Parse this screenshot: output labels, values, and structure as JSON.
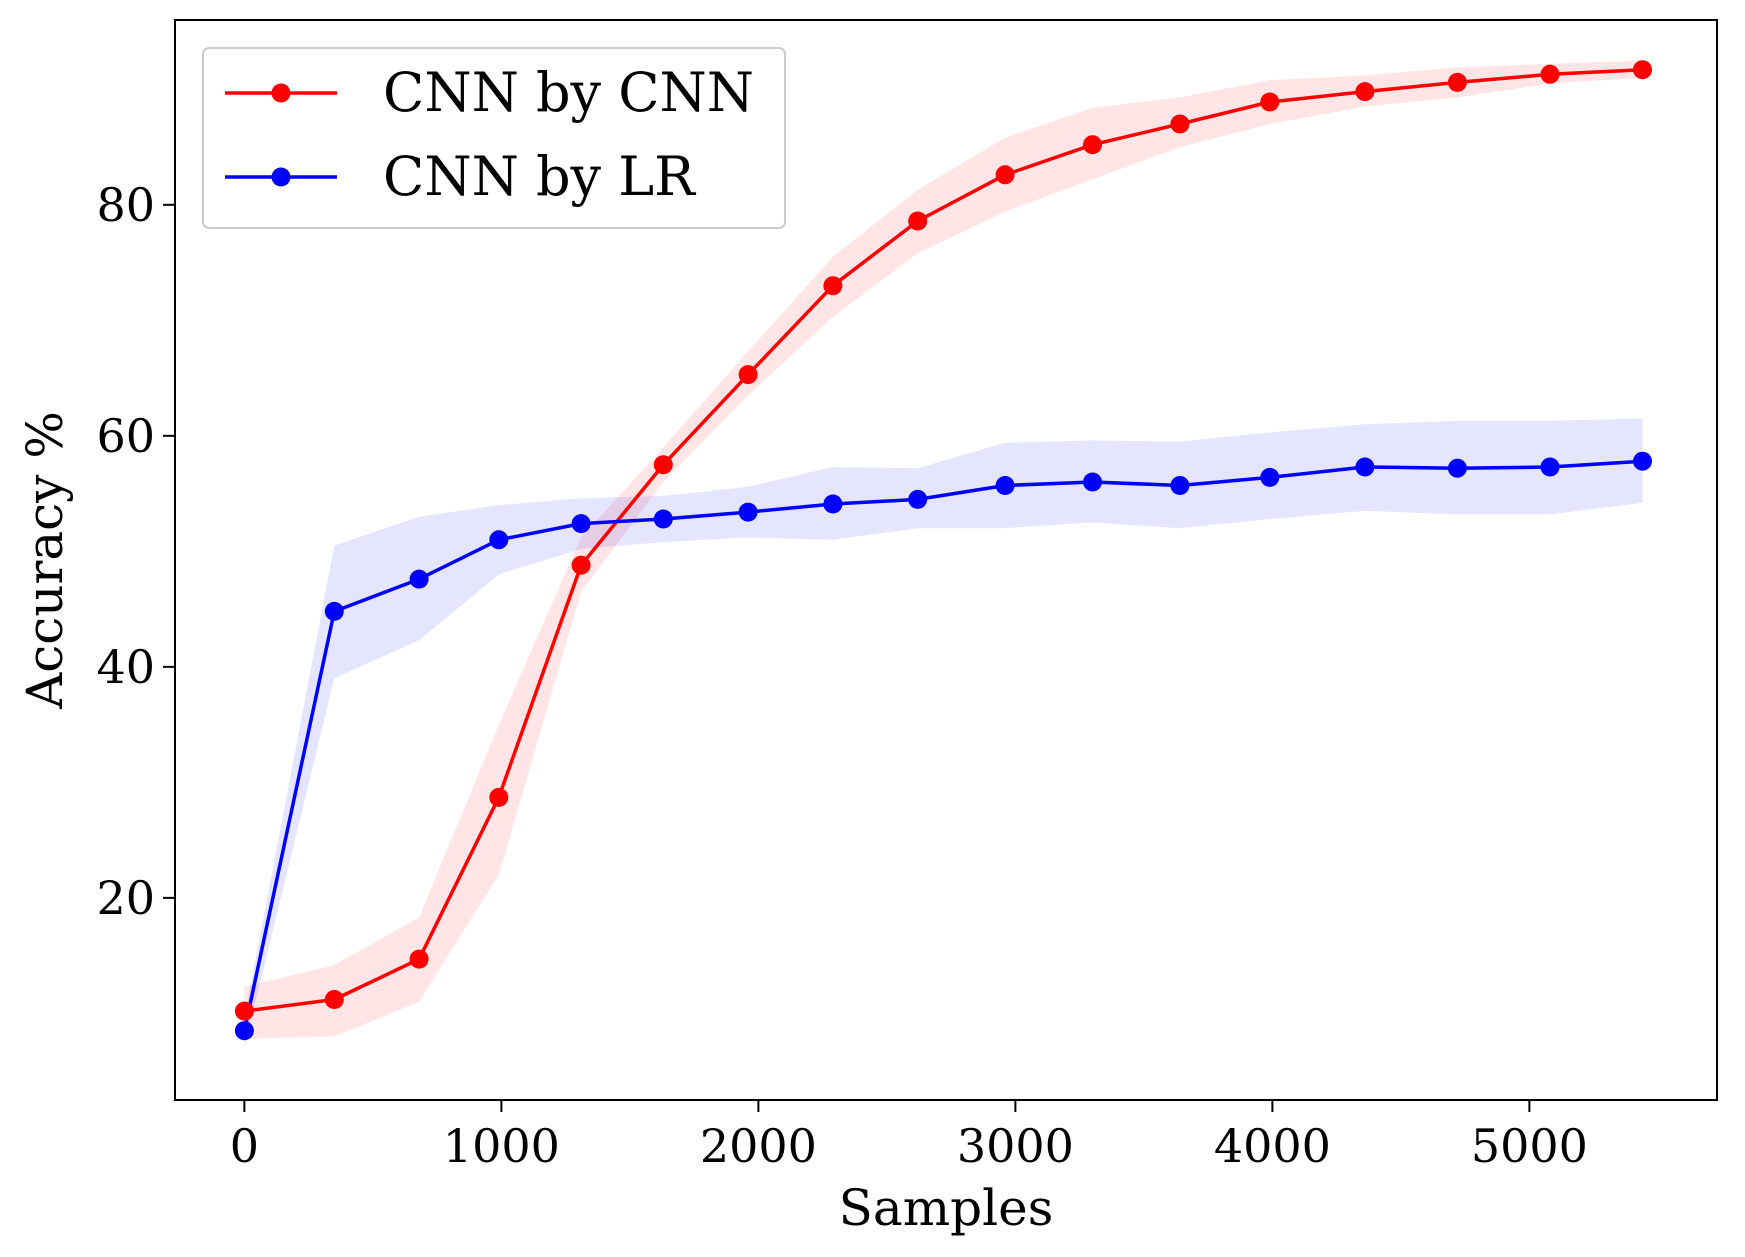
{
  "chart_data": {
    "type": "line",
    "title": "",
    "xlabel": "Samples",
    "ylabel": "Accuracy %",
    "xlim": [
      -270,
      5730
    ],
    "ylim": [
      2.5,
      96
    ],
    "xticks": [
      0,
      1000,
      2000,
      3000,
      4000,
      5000
    ],
    "yticks": [
      20,
      40,
      60,
      80
    ],
    "grid": false,
    "legend_position": "top-left",
    "series": [
      {
        "name": "CNN by CNN",
        "color": "#ff0000",
        "band_color": "#ff0000",
        "x": [
          0,
          350,
          680,
          990,
          1310,
          1630,
          1960,
          2290,
          2620,
          2960,
          3300,
          3640,
          3990,
          4360,
          4720,
          5080,
          5440
        ],
        "y": [
          10.2,
          11.2,
          14.7,
          28.7,
          48.8,
          57.5,
          65.3,
          73.0,
          78.6,
          82.6,
          85.2,
          87.0,
          88.9,
          89.8,
          90.6,
          91.3,
          91.7
        ],
        "lower": [
          7.8,
          8.0,
          11.0,
          22.0,
          46.5,
          56.0,
          63.5,
          70.3,
          75.8,
          79.4,
          82.2,
          85.0,
          87.0,
          88.5,
          89.3,
          90.5,
          91.0
        ],
        "upper": [
          12.3,
          14.2,
          18.3,
          35.0,
          51.2,
          59.0,
          67.3,
          75.5,
          81.3,
          85.8,
          88.4,
          89.3,
          90.8,
          91.2,
          91.9,
          92.2,
          92.5
        ]
      },
      {
        "name": "CNN by LR",
        "color": "#0000ff",
        "band_color": "#0000ff",
        "x": [
          0,
          350,
          680,
          990,
          1310,
          1630,
          1960,
          2290,
          2620,
          2960,
          3300,
          3640,
          3990,
          4360,
          4720,
          5080,
          5440
        ],
        "y": [
          8.5,
          44.8,
          47.6,
          51.0,
          52.4,
          52.8,
          53.4,
          54.1,
          54.5,
          55.7,
          56.0,
          55.7,
          56.4,
          57.3,
          57.2,
          57.3,
          57.8
        ],
        "lower": [
          7.0,
          39.0,
          42.3,
          48.0,
          50.2,
          50.8,
          51.2,
          51.0,
          52.0,
          52.0,
          52.5,
          52.0,
          52.8,
          53.5,
          53.2,
          53.2,
          54.2
        ],
        "upper": [
          9.6,
          50.5,
          53.0,
          54.0,
          54.6,
          54.8,
          55.6,
          57.3,
          57.2,
          59.4,
          59.6,
          59.5,
          60.3,
          61.0,
          61.3,
          61.3,
          61.5
        ]
      }
    ]
  }
}
